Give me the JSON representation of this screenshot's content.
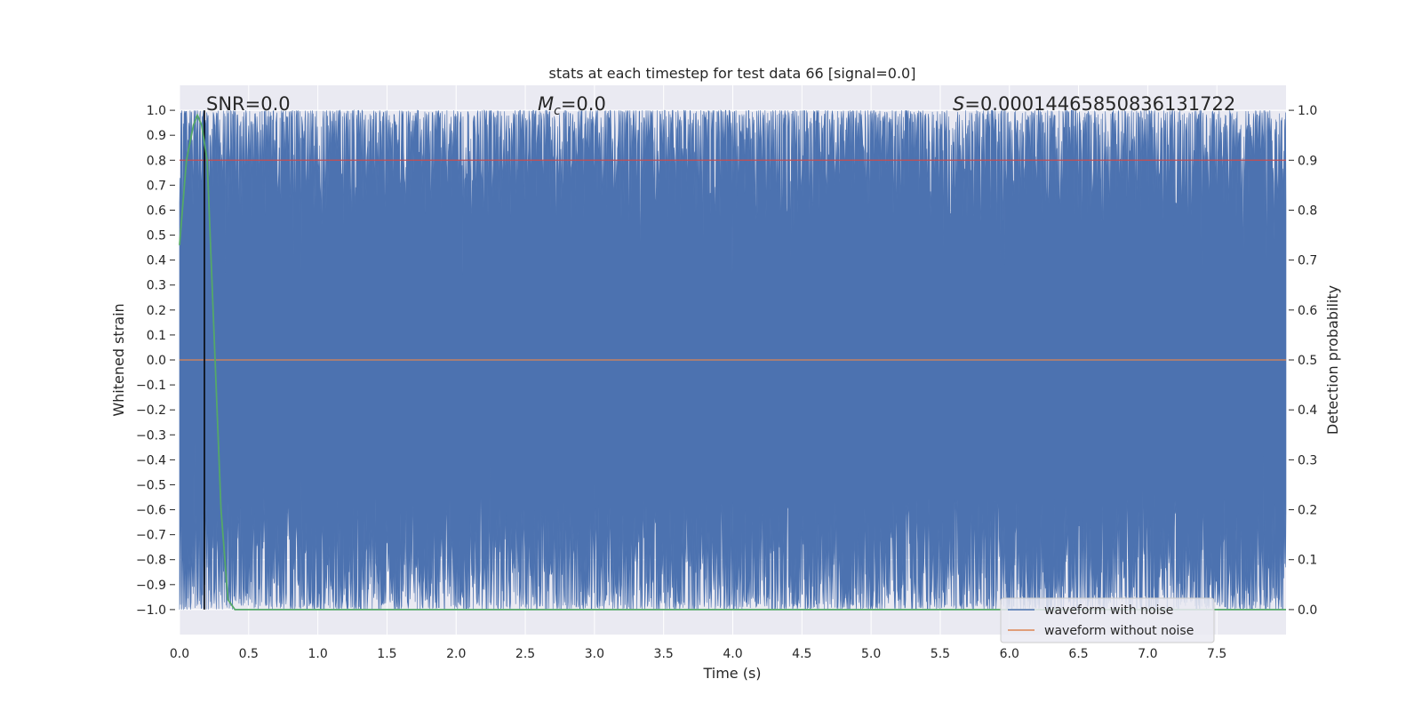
{
  "chart_data": {
    "type": "line",
    "title": "stats at each timestep for test data 66 [signal=0.0]",
    "xlabel": "Time (s)",
    "ylabel": "Whitened strain",
    "y2label": "Detection probability",
    "xlim": [
      0.0,
      8.0
    ],
    "ylim": [
      -1.1,
      1.1
    ],
    "y2lim": [
      -0.05,
      1.05
    ],
    "x_ticks": [
      "0.0",
      "0.5",
      "1.0",
      "1.5",
      "2.0",
      "2.5",
      "3.0",
      "3.5",
      "4.0",
      "4.5",
      "5.0",
      "5.5",
      "6.0",
      "6.5",
      "7.0",
      "7.5"
    ],
    "y_ticks": [
      "1.0",
      "0.9",
      "0.8",
      "0.7",
      "0.6",
      "0.5",
      "0.4",
      "0.3",
      "0.2",
      "0.1",
      "0.0",
      "−0.1",
      "−0.2",
      "−0.3",
      "−0.4",
      "−0.5",
      "−0.6",
      "−0.7",
      "−0.8",
      "−0.9",
      "−1.0"
    ],
    "y2_ticks": [
      "1.0",
      "0.9",
      "0.8",
      "0.7",
      "0.6",
      "0.5",
      "0.4",
      "0.3",
      "0.2",
      "0.1",
      "0.0"
    ],
    "grid": true,
    "legend_position": "lower right",
    "annotations": {
      "snr_text": "SNR=0.0",
      "mc_symbol": "M",
      "mc_subscript": "c",
      "mc_value": "=0.0",
      "s_symbol": "S",
      "s_value": "=0.00014465850836131722"
    },
    "series": [
      {
        "name": "waveform with noise",
        "color": "#4c72b0",
        "description": "noisy whitened strain oscillating between -1.0 and 1.0",
        "range": [
          -1.0,
          1.0
        ]
      },
      {
        "name": "waveform without noise",
        "color": "#dd8452",
        "values_constant": 0.0
      },
      {
        "color": "#55a868",
        "axis": "right",
        "x": [
          0.0,
          0.05,
          0.1,
          0.13,
          0.16,
          0.2,
          0.25,
          0.3,
          0.35,
          0.4,
          8.0
        ],
        "y": [
          0.73,
          0.9,
          0.97,
          0.99,
          0.97,
          0.9,
          0.55,
          0.2,
          0.02,
          0.0,
          0.0
        ]
      },
      {
        "color": "#000000",
        "kind": "vline",
        "x": 0.18
      },
      {
        "color": "#c44e52",
        "kind": "hline",
        "axis": "right",
        "y": 0.9
      }
    ]
  }
}
